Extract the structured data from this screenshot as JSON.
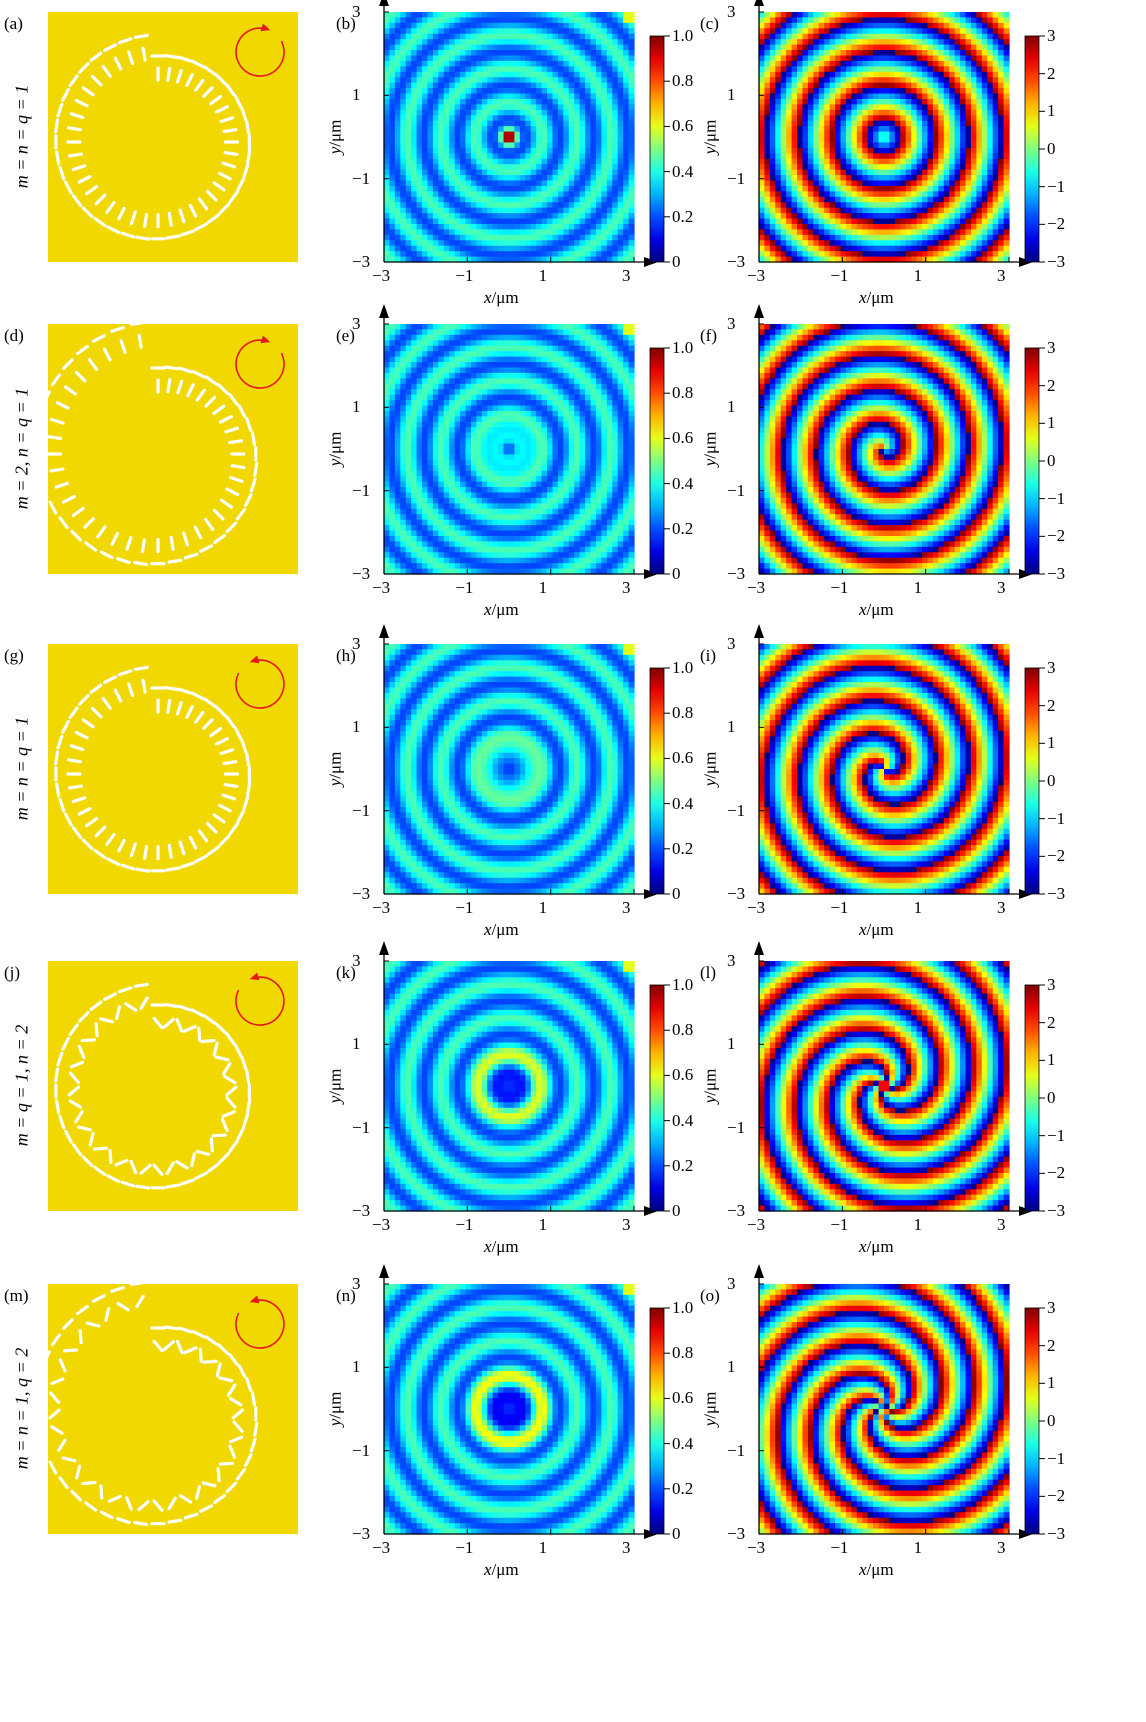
{
  "figure": {
    "rows": [
      {
        "label": "m = n = q = 1",
        "structure_panel": "(a)",
        "intensity_panel": "(b)",
        "phase_panel": "(c)",
        "arrow_direction": "clockwise",
        "spiral_ratio": 1.25,
        "antenna_style": "single"
      },
      {
        "label": "m = 2, n = q = 1",
        "structure_panel": "(d)",
        "intensity_panel": "(e)",
        "phase_panel": "(f)",
        "arrow_direction": "clockwise",
        "spiral_ratio": 1.55,
        "antenna_style": "single"
      },
      {
        "label": "m = n = q = 1",
        "structure_panel": "(g)",
        "intensity_panel": "(h)",
        "phase_panel": "(i)",
        "arrow_direction": "counterclockwise",
        "spiral_ratio": 1.25,
        "antenna_style": "single"
      },
      {
        "label": "m = q = 1, n = 2",
        "structure_panel": "(j)",
        "intensity_panel": "(k)",
        "phase_panel": "(l)",
        "arrow_direction": "counterclockwise",
        "spiral_ratio": 1.25,
        "antenna_style": "chevron"
      },
      {
        "label": "m = n = 1, q = 2",
        "structure_panel": "(m)",
        "intensity_panel": "(n)",
        "phase_panel": "(o)",
        "arrow_direction": "counterclockwise",
        "spiral_ratio": 1.55,
        "antenna_style": "chevron"
      }
    ],
    "axes": {
      "x_title_var": "x",
      "x_title_unit": "/μm",
      "y_title_var": "y",
      "y_title_unit": "/μm",
      "ticks": [
        "−3",
        "−1",
        "1",
        "3"
      ]
    },
    "intensity_colorbar_ticks": [
      "1.0",
      "0.8",
      "0.6",
      "0.4",
      "0.2",
      "0"
    ],
    "phase_colorbar_ticks": [
      "3",
      "2",
      "1",
      "0",
      "−1",
      "−2",
      "−3"
    ],
    "colors": {
      "gold": "#f0d800",
      "antenna": "#ffffff",
      "arrow": "#e41a1c"
    }
  },
  "chart_data": [
    {
      "type": "heatmap",
      "panel": "(b)",
      "quantity": "intensity",
      "xlim": [
        -3,
        3
      ],
      "ylim": [
        -3,
        3
      ],
      "clim": [
        0,
        1.0
      ],
      "center_intensity": 1.0,
      "topological_charge": 0
    },
    {
      "type": "heatmap",
      "panel": "(c)",
      "quantity": "phase",
      "xlim": [
        -3,
        3
      ],
      "ylim": [
        -3,
        3
      ],
      "clim": [
        -3.14,
        3.14
      ],
      "topological_charge": 0
    },
    {
      "type": "heatmap",
      "panel": "(e)",
      "quantity": "intensity",
      "xlim": [
        -3,
        3
      ],
      "ylim": [
        -3,
        3
      ],
      "clim": [
        0,
        1.0
      ],
      "center_intensity": 0.1,
      "topological_charge": 1
    },
    {
      "type": "heatmap",
      "panel": "(f)",
      "quantity": "phase",
      "xlim": [
        -3,
        3
      ],
      "ylim": [
        -3,
        3
      ],
      "clim": [
        -3.14,
        3.14
      ],
      "topological_charge": 1
    },
    {
      "type": "heatmap",
      "panel": "(h)",
      "quantity": "intensity",
      "xlim": [
        -3,
        3
      ],
      "ylim": [
        -3,
        3
      ],
      "clim": [
        0,
        1.0
      ],
      "center_intensity": 0.1,
      "topological_charge": 2
    },
    {
      "type": "heatmap",
      "panel": "(i)",
      "quantity": "phase",
      "xlim": [
        -3,
        3
      ],
      "ylim": [
        -3,
        3
      ],
      "clim": [
        -3.14,
        3.14
      ],
      "topological_charge": 2
    },
    {
      "type": "heatmap",
      "panel": "(k)",
      "quantity": "intensity",
      "xlim": [
        -3,
        3
      ],
      "ylim": [
        -3,
        3
      ],
      "clim": [
        0,
        1.0
      ],
      "center_intensity": 0.05,
      "topological_charge": 4
    },
    {
      "type": "heatmap",
      "panel": "(l)",
      "quantity": "phase",
      "xlim": [
        -3,
        3
      ],
      "ylim": [
        -3,
        3
      ],
      "clim": [
        -3.14,
        3.14
      ],
      "topological_charge": 4
    },
    {
      "type": "heatmap",
      "panel": "(n)",
      "quantity": "intensity",
      "xlim": [
        -3,
        3
      ],
      "ylim": [
        -3,
        3
      ],
      "clim": [
        0,
        1.0
      ],
      "center_intensity": 0.05,
      "topological_charge": 5
    },
    {
      "type": "heatmap",
      "panel": "(o)",
      "quantity": "phase",
      "xlim": [
        -3,
        3
      ],
      "ylim": [
        -3,
        3
      ],
      "clim": [
        -3.14,
        3.14
      ],
      "topological_charge": 5
    }
  ]
}
